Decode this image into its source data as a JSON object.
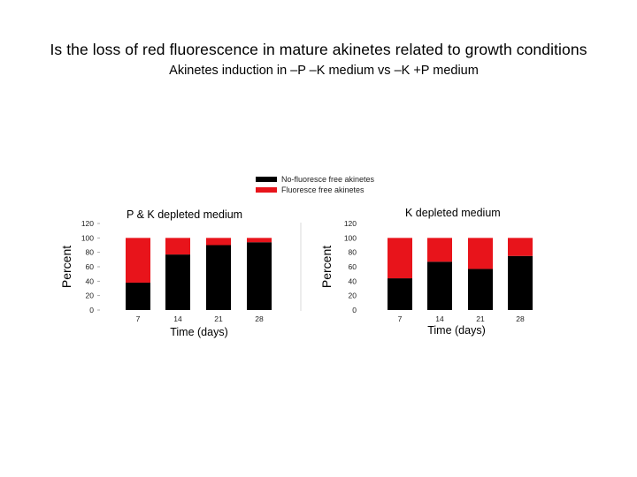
{
  "page": {
    "title": "Is the loss of red fluorescence in mature akinetes related to growth conditions",
    "subtitle": "Akinetes induction in –P –K medium vs –K +P medium"
  },
  "legend": [
    {
      "label": "No-fluoresce free akinetes",
      "color": "#000000"
    },
    {
      "label": "Fluoresce free akinetes",
      "color": "#e8141b"
    }
  ],
  "chart_data": [
    {
      "type": "bar",
      "stacked": true,
      "title": "P & K depleted medium",
      "xlabel": "Time (days)",
      "ylabel": "Percent",
      "categories": [
        "7",
        "14",
        "21",
        "28"
      ],
      "yticks": [
        0,
        20,
        40,
        60,
        80,
        100,
        120
      ],
      "ylim": [
        0,
        120
      ],
      "series": [
        {
          "name": "No-fluoresce free akinetes",
          "color": "#000000",
          "values": [
            38,
            77,
            90,
            94
          ]
        },
        {
          "name": "Fluoresce free akinetes",
          "color": "#e8141b",
          "values": [
            62,
            23,
            10,
            6
          ]
        }
      ]
    },
    {
      "type": "bar",
      "stacked": true,
      "title": "K depleted medium",
      "xlabel": "Time (days)",
      "ylabel": "Percent",
      "categories": [
        "7",
        "14",
        "21",
        "28"
      ],
      "yticks": [
        0,
        20,
        40,
        60,
        80,
        100,
        120
      ],
      "ylim": [
        0,
        120
      ],
      "series": [
        {
          "name": "No-fluoresce free akinetes",
          "color": "#000000",
          "values": [
            44,
            67,
            57,
            75
          ]
        },
        {
          "name": "Fluoresce free akinetes",
          "color": "#e8141b",
          "values": [
            56,
            33,
            43,
            25
          ]
        }
      ]
    }
  ]
}
